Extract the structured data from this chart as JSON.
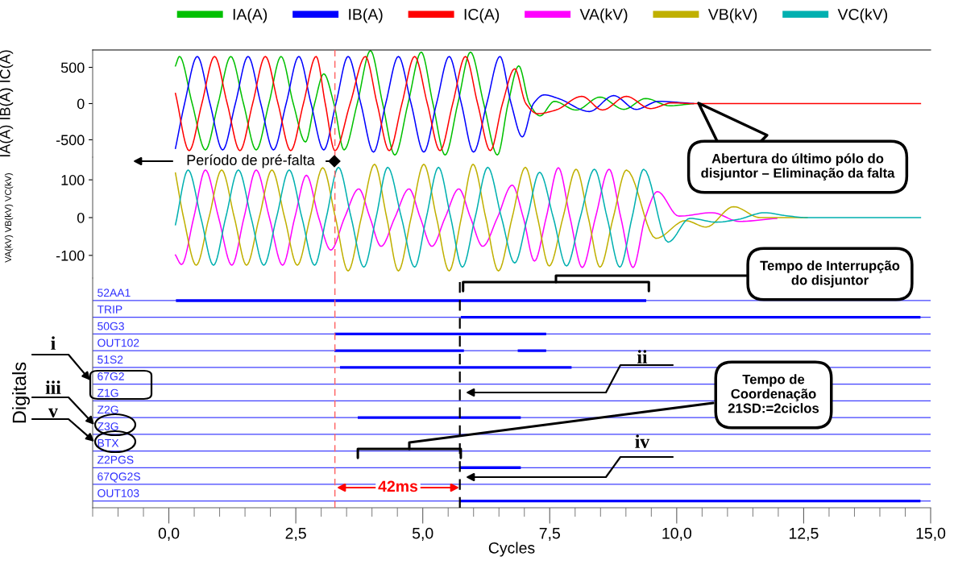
{
  "chart_data": [
    {
      "type": "line",
      "ylabel": "IA(A) IB(A) IC(A)",
      "xlim": [
        -1.5,
        15
      ],
      "ylim": [
        -740,
        740
      ],
      "yticks": [
        -500,
        0,
        500
      ],
      "tick_labels": "y",
      "legend": "top",
      "marker": "none",
      "line_style": "solid",
      "grid": false,
      "series": [
        {
          "name": "IA(A)",
          "color": "#00c000",
          "x": [
            0.13,
            0.21,
            0.46,
            0.72,
            0.97,
            1.22,
            1.47,
            1.72,
            1.97,
            2.21,
            2.45,
            2.69,
            2.87,
            3.05,
            3.25,
            3.45,
            3.71,
            3.97,
            4.21,
            4.45,
            4.71,
            4.97,
            5.2,
            5.44,
            5.69,
            5.94,
            6.2,
            6.47,
            6.68,
            6.89,
            7.1,
            7.31,
            7.59,
            8.02,
            8.49,
            8.96,
            9.39,
            9.86,
            10.33
          ],
          "values": [
            520,
            650,
            0,
            -640,
            0,
            650,
            0,
            -640,
            0,
            650,
            0,
            -530,
            0,
            410,
            0,
            -640,
            0,
            730,
            0,
            -710,
            0,
            710,
            0,
            -710,
            0,
            710,
            0,
            -710,
            0,
            520,
            0,
            -170,
            30,
            -90,
            90,
            -80,
            70,
            -30,
            0
          ]
        },
        {
          "name": "IB(A)",
          "color": "#0000ff",
          "x": [
            0.13,
            0.31,
            0.56,
            0.81,
            1.06,
            1.31,
            1.56,
            1.81,
            2.06,
            2.31,
            2.56,
            2.8,
            3.05,
            3.29,
            3.53,
            3.78,
            4.03,
            4.27,
            4.52,
            4.77,
            5.02,
            5.27,
            5.52,
            5.76,
            6.0,
            6.26,
            6.52,
            6.74,
            6.96,
            7.18,
            7.39,
            7.67,
            8.28,
            8.76,
            9.2,
            9.64,
            10.33
          ],
          "values": [
            -620,
            0,
            650,
            0,
            -640,
            0,
            650,
            0,
            -640,
            0,
            650,
            0,
            -640,
            0,
            650,
            0,
            -670,
            0,
            650,
            0,
            -670,
            0,
            650,
            0,
            -670,
            0,
            650,
            0,
            -460,
            0,
            120,
            70,
            -110,
            110,
            -80,
            30,
            0
          ]
        },
        {
          "name": "IC(A)",
          "color": "#ff0000",
          "x": [
            0.13,
            0.4,
            0.65,
            0.9,
            1.15,
            1.4,
            1.65,
            1.9,
            2.15,
            2.4,
            2.65,
            2.9,
            3.08,
            3.27,
            3.57,
            3.87,
            4.1,
            4.34,
            4.59,
            4.84,
            5.09,
            5.34,
            5.59,
            5.84,
            6.08,
            6.33,
            6.57,
            6.81,
            7.03,
            7.26,
            7.62,
            8.13,
            8.54,
            9.01,
            9.48,
            9.91,
            10.33,
            14.8
          ],
          "values": [
            140,
            -650,
            0,
            650,
            0,
            -650,
            0,
            650,
            0,
            -650,
            0,
            650,
            0,
            -650,
            0,
            650,
            0,
            -650,
            0,
            650,
            0,
            -650,
            0,
            650,
            0,
            -650,
            0,
            480,
            0,
            -140,
            -90,
            100,
            -90,
            100,
            -70,
            10,
            0,
            0
          ]
        }
      ],
      "ref_lines": [
        {
          "axis": "x",
          "value": 3.27,
          "color": "#ff6060",
          "line_style": "dashed"
        }
      ],
      "annotations": [
        "Período de pré-falta",
        "Abertura do último pólo do\ndisjuntor – Eliminação da falta"
      ]
    },
    {
      "type": "line",
      "ylabel": "VA(kV) VB(kV) VC(kV)",
      "xlim": [
        -1.5,
        15
      ],
      "ylim": [
        -160,
        160
      ],
      "yticks": [
        -100,
        0,
        100
      ],
      "tick_labels": "y",
      "legend": "top",
      "marker": "none",
      "line_style": "solid",
      "grid": false,
      "series": [
        {
          "name": "VA(kV)",
          "color": "#ff00ff",
          "x": [
            0.13,
            0.25,
            0.49,
            0.72,
            0.98,
            1.24,
            1.48,
            1.72,
            1.98,
            2.24,
            2.48,
            2.71,
            2.95,
            3.19,
            3.46,
            3.74,
            3.96,
            4.18,
            4.45,
            4.73,
            4.95,
            5.18,
            5.44,
            5.71,
            5.94,
            6.18,
            6.47,
            6.76,
            6.98,
            7.2,
            7.43,
            7.67,
            7.9,
            8.14,
            8.4,
            8.67,
            8.9,
            9.14,
            9.38,
            9.62,
            10.04,
            10.7,
            11.23,
            11.97
          ],
          "values": [
            -99,
            -124,
            0,
            126,
            0,
            -126,
            0,
            126,
            0,
            -126,
            0,
            112,
            0,
            -86,
            0,
            76,
            0,
            -76,
            0,
            76,
            0,
            -76,
            0,
            76,
            0,
            -76,
            0,
            86,
            0,
            -115,
            0,
            132,
            0,
            -132,
            0,
            128,
            0,
            -132,
            0,
            69,
            4,
            13,
            -10,
            -2
          ]
        },
        {
          "name": "VB(kV)",
          "color": "#c0b000",
          "x": [
            0.13,
            0.29,
            0.54,
            0.79,
            1.04,
            1.29,
            1.53,
            1.78,
            2.03,
            2.28,
            2.53,
            2.78,
            3.03,
            3.28,
            3.53,
            3.79,
            4.05,
            4.29,
            4.52,
            4.77,
            5.02,
            5.27,
            5.52,
            5.76,
            5.99,
            6.24,
            6.49,
            6.76,
            7.02,
            7.26,
            7.49,
            7.76,
            8.02,
            8.26,
            8.49,
            8.75,
            9.01,
            9.59,
            10.17,
            10.58,
            11.12,
            11.64,
            12.57
          ],
          "values": [
            118,
            0,
            -126,
            0,
            126,
            0,
            -126,
            0,
            126,
            0,
            -126,
            0,
            132,
            0,
            -141,
            0,
            141,
            0,
            -141,
            0,
            141,
            0,
            -141,
            0,
            141,
            0,
            -141,
            0,
            133,
            0,
            -128,
            0,
            128,
            0,
            -131,
            0,
            126,
            -55,
            -8,
            -25,
            29,
            0,
            0
          ]
        },
        {
          "name": "VC(kV)",
          "color": "#00b0b0",
          "x": [
            0.13,
            0.38,
            0.63,
            0.88,
            1.12,
            1.37,
            1.62,
            1.87,
            2.12,
            2.37,
            2.62,
            2.87,
            3.1,
            3.34,
            3.59,
            3.84,
            4.08,
            4.31,
            4.58,
            4.84,
            5.07,
            5.31,
            5.55,
            5.78,
            6.03,
            6.28,
            6.55,
            6.81,
            7.06,
            7.3,
            7.57,
            7.83,
            8.1,
            8.38,
            8.63,
            8.88,
            9.12,
            9.35,
            9.83,
            10.26,
            10.78,
            11.2,
            11.73,
            12.16,
            12.57,
            14.8
          ],
          "values": [
            -19,
            126,
            0,
            -126,
            0,
            126,
            0,
            -126,
            0,
            126,
            0,
            -126,
            0,
            133,
            0,
            -131,
            0,
            133,
            0,
            -131,
            0,
            133,
            0,
            -131,
            0,
            133,
            0,
            -120,
            0,
            120,
            0,
            -128,
            0,
            128,
            0,
            -131,
            0,
            128,
            -65,
            -2,
            -12,
            -5,
            13,
            5,
            0,
            0
          ]
        }
      ],
      "ref_lines": [
        {
          "axis": "x",
          "value": 3.27,
          "color": "#ff6060",
          "line_style": "dashed"
        }
      ]
    },
    {
      "type": "bar",
      "orientation": "horizontal",
      "ylabel": "Digitals",
      "xlabel": "Cycles",
      "xlim": [
        -1.5,
        15
      ],
      "grid": "y",
      "xticks": [
        {
          "value": 0,
          "label": "0,0"
        },
        {
          "value": 2.5,
          "label": "2,5"
        },
        {
          "value": 5,
          "label": "5,0"
        },
        {
          "value": 7.5,
          "label": "7,5"
        },
        {
          "value": 10,
          "label": "10,0"
        },
        {
          "value": 12.5,
          "label": "12,5"
        },
        {
          "value": 15,
          "label": "15,0"
        }
      ],
      "categories": [
        "52AA1",
        "TRIP",
        "50G3",
        "OUT102",
        "51S2",
        "67G2",
        "Z1G",
        "Z2G",
        "Z3G",
        "BTX",
        "Z2PGS",
        "67QG2S",
        "OUT103"
      ],
      "series": [
        {
          "color": "#0000ff",
          "base": [
            0.14,
            5.75,
            3.26,
            3.26,
            3.37,
            null,
            null,
            3.72,
            null,
            null,
            5.73,
            null,
            5.73
          ],
          "values": [
            9.26,
            9.05,
            4.17,
            2.55,
            4.56,
            null,
            null,
            3.21,
            null,
            null,
            1.2,
            null,
            9.07
          ]
        },
        {
          "color": "#0000ff",
          "base": [
            null,
            null,
            null,
            6.87,
            null,
            null,
            null,
            null,
            null,
            null,
            null,
            null,
            null
          ],
          "values": [
            null,
            null,
            null,
            0.56,
            null,
            null,
            null,
            null,
            null,
            null,
            null,
            null,
            null
          ]
        }
      ],
      "ref_lines": [
        {
          "axis": "x",
          "value": 3.27,
          "color": "#ff6060",
          "line_style": "dashed"
        },
        {
          "axis": "x",
          "value": 5.73,
          "color": "#000000",
          "line_style": "dashed"
        }
      ],
      "annotations": [
        "Tempo de Interrupção\ndo disjuntor",
        "Tempo de\nCoordenação\n21SD:=2ciclos",
        "42ms",
        "i",
        "ii",
        "iii",
        "iv",
        "v"
      ]
    }
  ]
}
